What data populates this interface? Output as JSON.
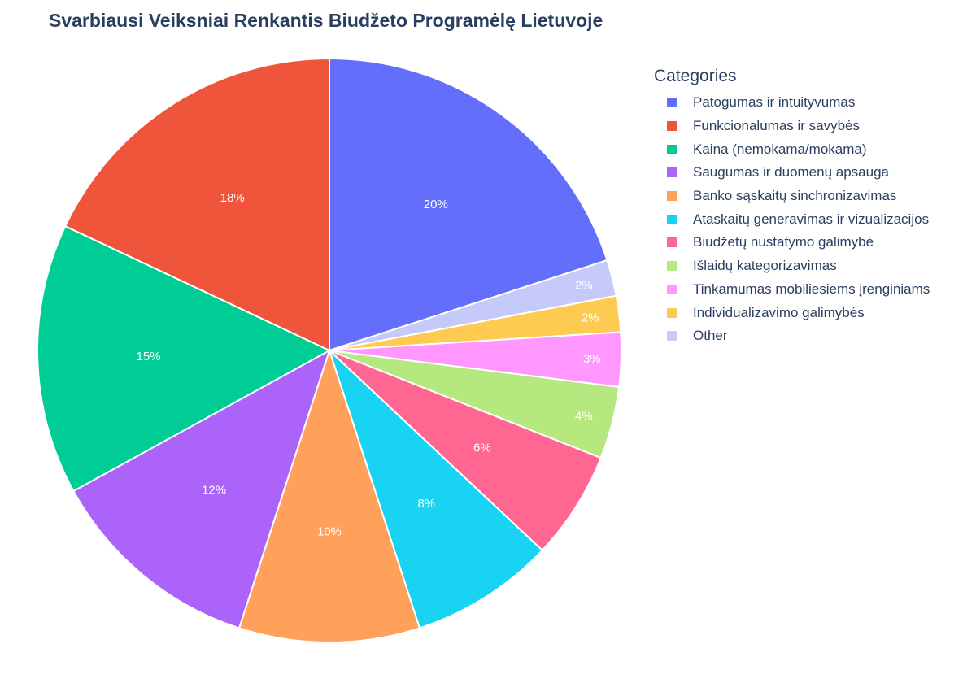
{
  "chart_data": {
    "type": "pie",
    "title": "Svarbiausi Veiksniai Renkantis Biudžeto Programėlę Lietuvoje",
    "legend_title": "Categories",
    "legend_position": "right",
    "direction": "clockwise",
    "start_angle_deg": 90,
    "slices": [
      {
        "label": "Patogumas ir intuityvumas",
        "value": 20,
        "text": "20%",
        "color": "#636EFA",
        "legend_index": 0
      },
      {
        "label": "Other",
        "value": 2,
        "text": "2%",
        "color": "#C6CAFB",
        "legend_index": 10
      },
      {
        "label": "Individualizavimo galimybės",
        "value": 2,
        "text": "2%",
        "color": "#FECB52",
        "legend_index": 9
      },
      {
        "label": "Tinkamumas mobiliesiems įrenginiams",
        "value": 3,
        "text": "3%",
        "color": "#FF97FF",
        "legend_index": 8
      },
      {
        "label": "Išlaidų kategorizavimas",
        "value": 4,
        "text": "4%",
        "color": "#B6E880",
        "legend_index": 7
      },
      {
        "label": "Biudžetų nustatymo galimybė",
        "value": 6,
        "text": "6%",
        "color": "#FF6692",
        "legend_index": 6
      },
      {
        "label": "Ataskaitų generavimas ir vizualizacijos",
        "value": 8,
        "text": "8%",
        "color": "#19D3F3",
        "legend_index": 5
      },
      {
        "label": "Banko sąskaitų sinchronizavimas",
        "value": 10,
        "text": "10%",
        "color": "#FFA15A",
        "legend_index": 4
      },
      {
        "label": "Saugumas ir duomenų apsauga",
        "value": 12,
        "text": "12%",
        "color": "#AB63FA",
        "legend_index": 3
      },
      {
        "label": "Kaina (nemokama/mokama)",
        "value": 15,
        "text": "15%",
        "color": "#00CC96",
        "legend_index": 2
      },
      {
        "label": "Funkcionalumas ir savybės",
        "value": 18,
        "text": "18%",
        "color": "#EF553B",
        "legend_index": 1
      }
    ],
    "legend": [
      {
        "label": "Patogumas ir intuityvumas",
        "color": "#636EFA"
      },
      {
        "label": "Funkcionalumas ir savybės",
        "color": "#EF553B"
      },
      {
        "label": "Kaina (nemokama/mokama)",
        "color": "#00CC96"
      },
      {
        "label": "Saugumas ir duomenų apsauga",
        "color": "#AB63FA"
      },
      {
        "label": "Banko sąskaitų sinchronizavimas",
        "color": "#FFA15A"
      },
      {
        "label": "Ataskaitų generavimas ir vizualizacijos",
        "color": "#19D3F3"
      },
      {
        "label": "Biudžetų nustatymo galimybė",
        "color": "#FF6692"
      },
      {
        "label": "Išlaidų kategorizavimas",
        "color": "#B6E880"
      },
      {
        "label": "Tinkamumas mobiliesiems įrenginiams",
        "color": "#FF97FF"
      },
      {
        "label": "Individualizavimo galimybės",
        "color": "#FECB52"
      },
      {
        "label": "Other",
        "color": "#C6CAFB"
      }
    ]
  }
}
